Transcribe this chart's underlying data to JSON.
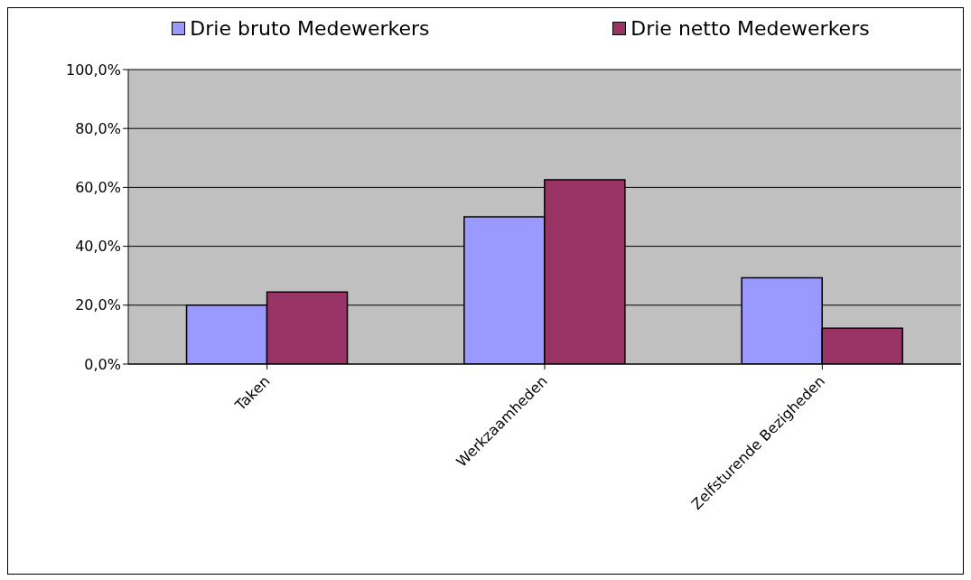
{
  "chart_data": {
    "type": "bar",
    "categories": [
      "Taken",
      "Werkzaamheden",
      "Zelfsturende Bezigheden"
    ],
    "series": [
      {
        "name": "Drie bruto Medewerkers",
        "color": "#9999ff",
        "values": [
          20.0,
          50.0,
          29.3
        ]
      },
      {
        "name": "Drie netto Medewerkers",
        "color": "#993366",
        "values": [
          24.5,
          62.6,
          12.2
        ]
      }
    ],
    "ylim": [
      0,
      100
    ],
    "yticks": [
      {
        "value": 0,
        "label": "0,0%"
      },
      {
        "value": 20,
        "label": "20,0%"
      },
      {
        "value": 40,
        "label": "40,0%"
      },
      {
        "value": 60,
        "label": "60,0%"
      },
      {
        "value": 80,
        "label": "80,0%"
      },
      {
        "value": 100,
        "label": "100,0%"
      }
    ],
    "grid": "y",
    "legend": "top"
  }
}
